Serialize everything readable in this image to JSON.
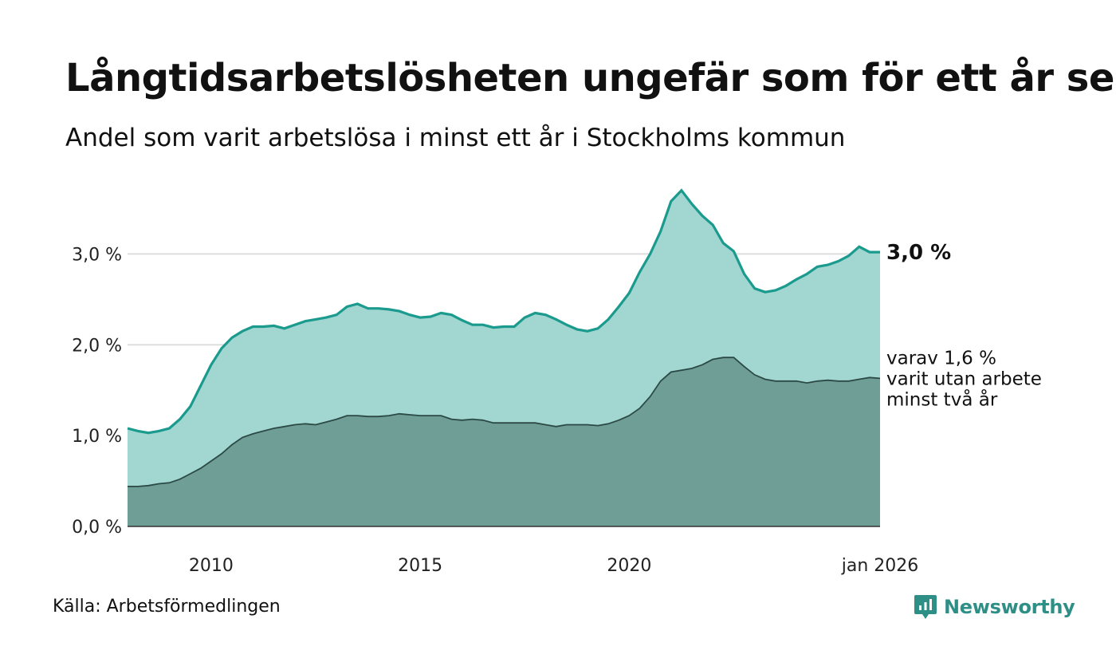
{
  "header": {
    "title": "Långtidsarbetslösheten ungefär som för ett år sen",
    "subtitle": "Andel som varit arbetslösa i minst ett år i Stockholms kommun"
  },
  "footer": {
    "source": "Källa: Arbetsförmedlingen",
    "brand": "Newsworthy"
  },
  "colors": {
    "series_total_fill": "#a2d6d1",
    "series_total_line": "#1b9a8e",
    "series_long_fill": "#6f9e97",
    "series_long_line": "#2c4a45",
    "grid": "#dddddd",
    "axis": "#333333"
  },
  "icons": [
    "newsworthy-logo-icon"
  ],
  "chart_data": {
    "type": "area",
    "title": "Långtidsarbetslösheten ungefär som för ett år sen",
    "subtitle": "Andel som varit arbetslösa i minst ett år i Stockholms kommun",
    "xlabel": "",
    "ylabel": "",
    "x_unit": "year (decimal)",
    "xlim": [
      2008.0,
      2026.0
    ],
    "ylim": [
      0,
      3.8
    ],
    "grid": true,
    "x_ticks": [
      {
        "value": 2010,
        "label": "2010"
      },
      {
        "value": 2015,
        "label": "2015"
      },
      {
        "value": 2020,
        "label": "2020"
      },
      {
        "value": 2026.0,
        "label": "jan 2026"
      }
    ],
    "y_ticks": [
      {
        "value": 0,
        "label": "0,0 %"
      },
      {
        "value": 1,
        "label": "1,0 %"
      },
      {
        "value": 2,
        "label": "2,0 %"
      },
      {
        "value": 3,
        "label": "3,0 %"
      }
    ],
    "annotations": {
      "total_end": "3,0 %",
      "long_end_lines": [
        "varav 1,6 %",
        "varit utan arbete",
        "minst två år"
      ]
    },
    "series": [
      {
        "name": "Arbetslösa minst ett år",
        "x": [
          2008.0,
          2008.25,
          2008.5,
          2008.75,
          2009.0,
          2009.25,
          2009.5,
          2009.75,
          2010.0,
          2010.25,
          2010.5,
          2010.75,
          2011.0,
          2011.25,
          2011.5,
          2011.75,
          2012.0,
          2012.25,
          2012.5,
          2012.75,
          2013.0,
          2013.25,
          2013.5,
          2013.75,
          2014.0,
          2014.25,
          2014.5,
          2014.75,
          2015.0,
          2015.25,
          2015.5,
          2015.75,
          2016.0,
          2016.25,
          2016.5,
          2016.75,
          2017.0,
          2017.25,
          2017.5,
          2017.75,
          2018.0,
          2018.25,
          2018.5,
          2018.75,
          2019.0,
          2019.25,
          2019.5,
          2019.75,
          2020.0,
          2020.25,
          2020.5,
          2020.75,
          2021.0,
          2021.25,
          2021.5,
          2021.75,
          2022.0,
          2022.25,
          2022.5,
          2022.75,
          2023.0,
          2023.25,
          2023.5,
          2023.75,
          2024.0,
          2024.25,
          2024.5,
          2024.75,
          2025.0,
          2025.25,
          2025.5,
          2025.75,
          2026.0
        ],
        "values": [
          1.08,
          1.05,
          1.03,
          1.05,
          1.08,
          1.18,
          1.32,
          1.55,
          1.78,
          1.96,
          2.08,
          2.15,
          2.2,
          2.2,
          2.21,
          2.18,
          2.22,
          2.26,
          2.28,
          2.3,
          2.33,
          2.42,
          2.45,
          2.4,
          2.4,
          2.39,
          2.37,
          2.33,
          2.3,
          2.31,
          2.35,
          2.33,
          2.27,
          2.22,
          2.22,
          2.19,
          2.2,
          2.2,
          2.3,
          2.35,
          2.33,
          2.28,
          2.22,
          2.17,
          2.15,
          2.18,
          2.28,
          2.42,
          2.57,
          2.8,
          3.0,
          3.25,
          3.58,
          3.7,
          3.55,
          3.42,
          3.32,
          3.12,
          3.03,
          2.78,
          2.62,
          2.58,
          2.6,
          2.65,
          2.72,
          2.78,
          2.86,
          2.88,
          2.92,
          2.98,
          3.08,
          3.02,
          3.02
        ]
      },
      {
        "name": "varav minst två år",
        "x": [
          2008.0,
          2008.25,
          2008.5,
          2008.75,
          2009.0,
          2009.25,
          2009.5,
          2009.75,
          2010.0,
          2010.25,
          2010.5,
          2010.75,
          2011.0,
          2011.25,
          2011.5,
          2011.75,
          2012.0,
          2012.25,
          2012.5,
          2012.75,
          2013.0,
          2013.25,
          2013.5,
          2013.75,
          2014.0,
          2014.25,
          2014.5,
          2014.75,
          2015.0,
          2015.25,
          2015.5,
          2015.75,
          2016.0,
          2016.25,
          2016.5,
          2016.75,
          2017.0,
          2017.25,
          2017.5,
          2017.75,
          2018.0,
          2018.25,
          2018.5,
          2018.75,
          2019.0,
          2019.25,
          2019.5,
          2019.75,
          2020.0,
          2020.25,
          2020.5,
          2020.75,
          2021.0,
          2021.25,
          2021.5,
          2021.75,
          2022.0,
          2022.25,
          2022.5,
          2022.75,
          2023.0,
          2023.25,
          2023.5,
          2023.75,
          2024.0,
          2024.25,
          2024.5,
          2024.75,
          2025.0,
          2025.25,
          2025.5,
          2025.75,
          2026.0
        ],
        "values": [
          0.44,
          0.44,
          0.45,
          0.47,
          0.48,
          0.52,
          0.58,
          0.64,
          0.72,
          0.8,
          0.9,
          0.98,
          1.02,
          1.05,
          1.08,
          1.1,
          1.12,
          1.13,
          1.12,
          1.15,
          1.18,
          1.22,
          1.22,
          1.21,
          1.21,
          1.22,
          1.24,
          1.23,
          1.22,
          1.22,
          1.22,
          1.18,
          1.17,
          1.18,
          1.17,
          1.14,
          1.14,
          1.14,
          1.14,
          1.14,
          1.12,
          1.1,
          1.12,
          1.12,
          1.12,
          1.11,
          1.13,
          1.17,
          1.22,
          1.3,
          1.43,
          1.6,
          1.7,
          1.72,
          1.74,
          1.78,
          1.84,
          1.86,
          1.86,
          1.76,
          1.67,
          1.62,
          1.6,
          1.6,
          1.6,
          1.58,
          1.6,
          1.61,
          1.6,
          1.6,
          1.62,
          1.64,
          1.63
        ]
      }
    ]
  }
}
